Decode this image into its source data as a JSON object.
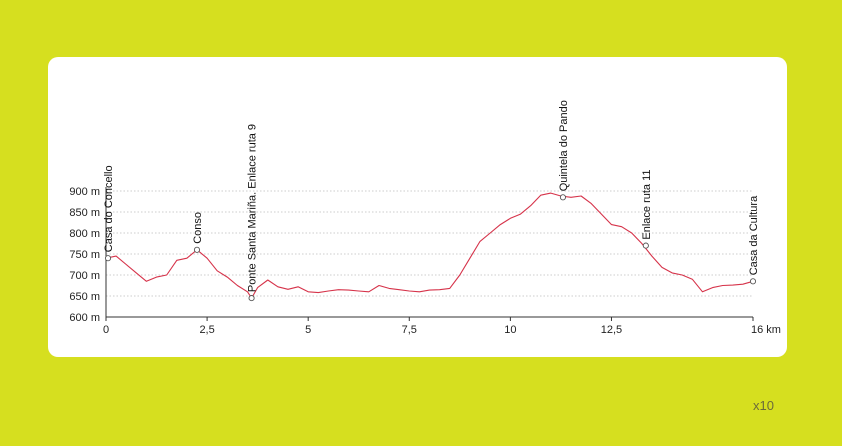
{
  "chart_data": {
    "type": "line",
    "title": "",
    "xlabel": "",
    "ylabel": "",
    "xlim": [
      0,
      16
    ],
    "ylim": [
      600,
      900
    ],
    "x_ticks": [
      {
        "value": 0,
        "label": "0"
      },
      {
        "value": 2.5,
        "label": "2,5"
      },
      {
        "value": 5,
        "label": "5"
      },
      {
        "value": 7.5,
        "label": "7,5"
      },
      {
        "value": 10,
        "label": "10"
      },
      {
        "value": 12.5,
        "label": "12,5"
      },
      {
        "value": 16,
        "label": "16 km"
      }
    ],
    "y_ticks": [
      {
        "value": 600,
        "label": "600 m"
      },
      {
        "value": 650,
        "label": "650 m"
      },
      {
        "value": 700,
        "label": "700 m"
      },
      {
        "value": 750,
        "label": "750 m"
      },
      {
        "value": 800,
        "label": "800 m"
      },
      {
        "value": 850,
        "label": "850 m"
      },
      {
        "value": 900,
        "label": "900 m"
      }
    ],
    "grid": true,
    "line_color": "#d6334a",
    "series": [
      {
        "x": [
          0,
          0.25,
          0.5,
          0.75,
          1.0,
          1.25,
          1.5,
          1.75,
          2.0,
          2.25,
          2.5,
          2.75,
          3.0,
          3.25,
          3.5,
          3.6,
          3.75,
          4.0,
          4.25,
          4.5,
          4.75,
          5.0,
          5.25,
          5.5,
          5.75,
          6.0,
          6.25,
          6.5,
          6.75,
          7.0,
          7.25,
          7.5,
          7.75,
          8.0,
          8.25,
          8.5,
          8.75,
          9.0,
          9.25,
          9.5,
          9.75,
          10.0,
          10.25,
          10.5,
          10.75,
          11.0,
          11.25,
          11.5,
          11.75,
          12.0,
          12.25,
          12.5,
          12.75,
          13.0,
          13.25,
          13.5,
          13.75,
          14.0,
          14.25,
          14.5,
          14.75,
          15.0,
          15.25,
          15.5,
          15.75,
          16.0
        ],
        "y": [
          740,
          745,
          725,
          705,
          685,
          695,
          700,
          735,
          740,
          760,
          740,
          710,
          695,
          675,
          660,
          645,
          670,
          688,
          672,
          666,
          672,
          660,
          658,
          662,
          665,
          664,
          662,
          660,
          675,
          668,
          665,
          662,
          660,
          664,
          665,
          668,
          700,
          740,
          780,
          800,
          820,
          835,
          845,
          865,
          890,
          895,
          888,
          885,
          888,
          870,
          845,
          820,
          815,
          800,
          775,
          745,
          718,
          705,
          700,
          690,
          660,
          670,
          675,
          676,
          678,
          685
        ]
      }
    ],
    "waypoints": [
      {
        "x": 0.05,
        "y": 740,
        "label": "Casa do Concello"
      },
      {
        "x": 2.25,
        "y": 760,
        "label": "Conso"
      },
      {
        "x": 3.6,
        "y": 645,
        "label": "Ponte Santa Mariña. Enlace ruta 9"
      },
      {
        "x": 11.3,
        "y": 885,
        "label": "Quintela do Pando"
      },
      {
        "x": 13.35,
        "y": 770,
        "label": "Enlace ruta 11"
      },
      {
        "x": 16.0,
        "y": 685,
        "label": "Casa da Cultura"
      }
    ]
  },
  "footer": {
    "scale_note": "x10"
  }
}
